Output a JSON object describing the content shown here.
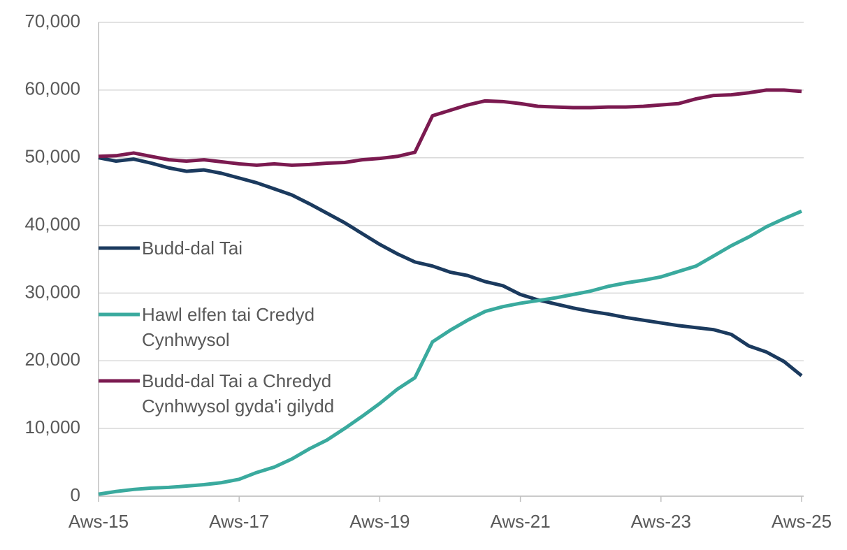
{
  "chart_data": {
    "type": "line",
    "categories": [
      "Aws-15",
      null,
      null,
      null,
      null,
      null,
      null,
      null,
      "Aws-17",
      null,
      null,
      null,
      null,
      null,
      null,
      null,
      "Aws-19",
      null,
      null,
      null,
      null,
      null,
      null,
      null,
      "Aws-21",
      null,
      null,
      null,
      null,
      null,
      null,
      null,
      "Aws-23",
      null,
      null,
      null,
      null,
      null,
      null,
      null,
      "Aws-25"
    ],
    "series": [
      {
        "name": "Budd-dal Tai",
        "color": "#1b3a5e",
        "values": [
          50000,
          49500,
          49800,
          49200,
          48500,
          48000,
          48200,
          47700,
          47000,
          46300,
          45400,
          44500,
          43200,
          41800,
          40400,
          38800,
          37200,
          35800,
          34600,
          34000,
          33100,
          32600,
          31700,
          31100,
          29800,
          29000,
          28400,
          27800,
          27300,
          26900,
          26400,
          26000,
          25600,
          25200,
          24900,
          24600,
          23900,
          22200,
          21300,
          19900,
          17800
        ]
      },
      {
        "name": "Hawl elfen tai Credyd Cynhwysol",
        "color": "#3aaa9e",
        "values": [
          300,
          700,
          1000,
          1200,
          1300,
          1500,
          1700,
          2000,
          2500,
          3500,
          4300,
          5500,
          7000,
          8300,
          10000,
          11800,
          13700,
          15800,
          17500,
          22800,
          24500,
          26000,
          27300,
          28000,
          28500,
          28900,
          29300,
          29800,
          30300,
          31000,
          31500,
          31900,
          32400,
          33200,
          34000,
          35500,
          37000,
          38300,
          39800,
          41000,
          42100
        ]
      },
      {
        "name": "Budd-dal Tai a Chredyd Cynhwysol gyda'i gilydd",
        "color": "#7b1a50",
        "values": [
          50200,
          50300,
          50700,
          50200,
          49700,
          49500,
          49700,
          49400,
          49100,
          48900,
          49100,
          48900,
          49000,
          49200,
          49300,
          49700,
          49900,
          50200,
          50800,
          56200,
          57000,
          57800,
          58400,
          58300,
          58000,
          57600,
          57500,
          57400,
          57400,
          57500,
          57500,
          57600,
          57800,
          58000,
          58700,
          59200,
          59300,
          59600,
          60000,
          60000,
          59800
        ]
      }
    ],
    "ylim": [
      0,
      70000
    ],
    "yticks": [
      {
        "value": 0,
        "label": "0"
      },
      {
        "value": 10000,
        "label": "10,000"
      },
      {
        "value": 20000,
        "label": "20,000"
      },
      {
        "value": 30000,
        "label": "30,000"
      },
      {
        "value": 40000,
        "label": "40,000"
      },
      {
        "value": 50000,
        "label": "50,000"
      },
      {
        "value": 60000,
        "label": "60,000"
      },
      {
        "value": 70000,
        "label": "70,000"
      }
    ],
    "grid": true
  }
}
